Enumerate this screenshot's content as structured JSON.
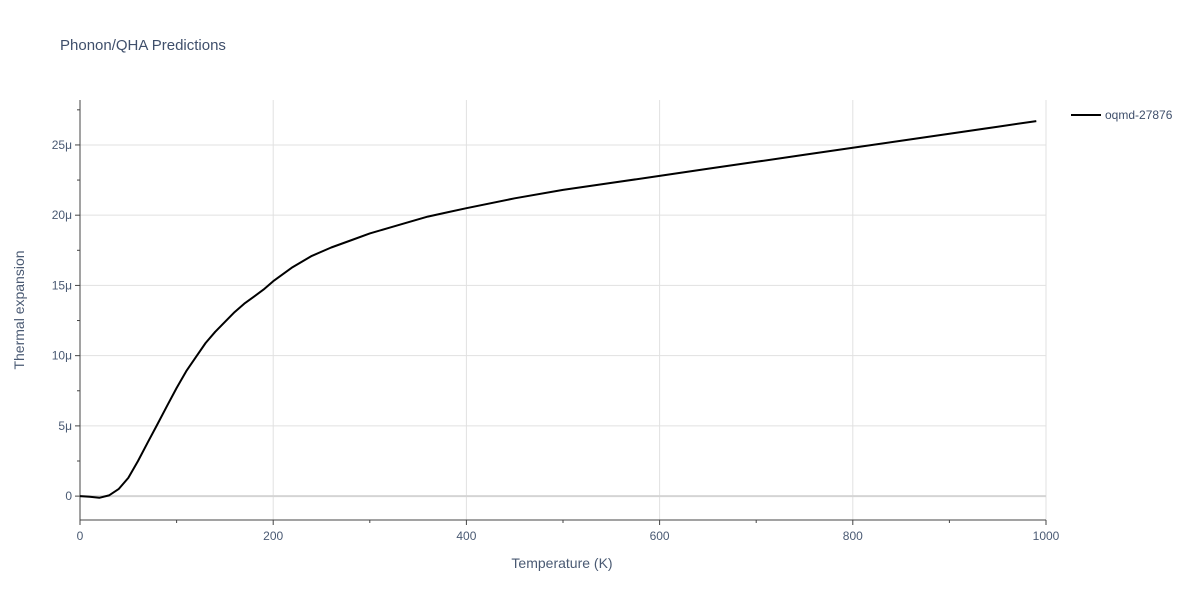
{
  "chart_data": {
    "type": "line",
    "title": "Phonon/QHA Predictions",
    "xlabel": "Temperature (K)",
    "ylabel": "Thermal expansion",
    "xlim": [
      0,
      1000
    ],
    "ylim": [
      -1.7e-06,
      2.82e-05
    ],
    "x_ticks": [
      0,
      200,
      400,
      600,
      800,
      1000
    ],
    "x_tick_labels": [
      "0",
      "200",
      "400",
      "600",
      "800",
      "1000"
    ],
    "y_ticks": [
      0,
      5e-06,
      1e-05,
      1.5e-05,
      2e-05,
      2.5e-05
    ],
    "y_tick_labels": [
      "0",
      "5μ",
      "10μ",
      "15μ",
      "20μ",
      "25μ"
    ],
    "grid": true,
    "legend_position": "top-right",
    "series": [
      {
        "name": "oqmd-27876",
        "color": "#000000",
        "x": [
          0,
          10,
          20,
          30,
          40,
          50,
          60,
          70,
          80,
          90,
          100,
          110,
          120,
          130,
          140,
          150,
          160,
          170,
          180,
          190,
          200,
          220,
          240,
          260,
          280,
          300,
          320,
          340,
          360,
          380,
          400,
          450,
          500,
          550,
          600,
          650,
          700,
          750,
          800,
          850,
          900,
          950,
          990
        ],
        "y": [
          0,
          -5e-08,
          -1.2e-07,
          5e-08,
          5e-07,
          1.3e-06,
          2.5e-06,
          3.8e-06,
          5.1e-06,
          6.4e-06,
          7.7e-06,
          8.9e-06,
          9.9e-06,
          1.09e-05,
          1.17e-05,
          1.24e-05,
          1.31e-05,
          1.37e-05,
          1.42e-05,
          1.47e-05,
          1.53e-05,
          1.63e-05,
          1.71e-05,
          1.77e-05,
          1.82e-05,
          1.87e-05,
          1.91e-05,
          1.95e-05,
          1.99e-05,
          2.02e-05,
          2.05e-05,
          2.12e-05,
          2.18e-05,
          2.23e-05,
          2.28e-05,
          2.33e-05,
          2.38e-05,
          2.43e-05,
          2.48e-05,
          2.53e-05,
          2.58e-05,
          2.63e-05,
          2.67e-05
        ]
      }
    ]
  }
}
